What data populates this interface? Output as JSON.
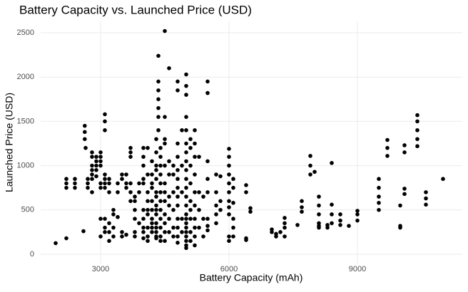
{
  "chart_data": {
    "type": "scatter",
    "title": "Battery Capacity vs. Launched Price (USD)",
    "x_label": "Battery Capacity (mAh)",
    "y_label": "Launched Price (USD)",
    "color": "#000000",
    "grid": true,
    "xlim": [
      1600,
      11450
    ],
    "ylim": [
      -105,
      2629
    ],
    "xticks": [
      3000,
      6000,
      9000
    ],
    "yticks": [
      0,
      500,
      1000,
      1500,
      2000,
      2500
    ],
    "x": [
      1950,
      2200,
      2200,
      2200,
      2200,
      2400,
      2400,
      2400,
      2600,
      2630,
      2630,
      2630,
      2650,
      2700,
      2700,
      2700,
      2800,
      2800,
      2800,
      2800,
      2800,
      2800,
      2800,
      2900,
      2900,
      2900,
      2900,
      2900,
      3000,
      3000,
      3000,
      3000,
      3000,
      3000,
      3000,
      3000,
      3100,
      3100,
      3100,
      3100,
      3100,
      3100,
      3100,
      3100,
      3100,
      3100,
      3200,
      3200,
      3200,
      3200,
      3200,
      3200,
      3300,
      3300,
      3300,
      3300,
      3400,
      3400,
      3400,
      3500,
      3500,
      3500,
      3500,
      3600,
      3600,
      3600,
      3600,
      3700,
      3700,
      3700,
      3700,
      3700,
      3700,
      3800,
      3800,
      3800,
      3800,
      3800,
      3800,
      3900,
      3900,
      3900,
      4000,
      4000,
      4000,
      4000,
      4000,
      4000,
      4000,
      4000,
      4000,
      4000,
      4100,
      4100,
      4100,
      4100,
      4100,
      4100,
      4100,
      4100,
      4100,
      4200,
      4200,
      4200,
      4200,
      4200,
      4200,
      4200,
      4200,
      4200,
      4200,
      4300,
      4300,
      4300,
      4300,
      4300,
      4300,
      4300,
      4300,
      4300,
      4300,
      4300,
      4300,
      4300,
      4300,
      4300,
      4350,
      4350,
      4350,
      4350,
      4350,
      4350,
      4350,
      4400,
      4400,
      4400,
      4400,
      4400,
      4400,
      4400,
      4400,
      4400,
      4400,
      4400,
      4400,
      4500,
      4500,
      4500,
      4500,
      4500,
      4500,
      4500,
      4500,
      4500,
      4500,
      4500,
      4500,
      4600,
      4600,
      4600,
      4600,
      4600,
      4600,
      4600,
      4700,
      4700,
      4700,
      4700,
      4700,
      4700,
      4800,
      4800,
      4800,
      4800,
      4800,
      4800,
      4800,
      4800,
      4800,
      4800,
      4800,
      4800,
      4800,
      4900,
      4900,
      4900,
      4900,
      4900,
      5000,
      5000,
      5000,
      5000,
      5000,
      5000,
      5000,
      5000,
      5000,
      5000,
      5000,
      5000,
      5000,
      5000,
      5000,
      5000,
      5000,
      5000,
      5000,
      5000,
      5000,
      5000,
      5100,
      5100,
      5100,
      5100,
      5100,
      5100,
      5100,
      5100,
      5100,
      5200,
      5200,
      5200,
      5200,
      5200,
      5200,
      5200,
      5200,
      5200,
      5200,
      5300,
      5300,
      5300,
      5300,
      5400,
      5400,
      5400,
      5500,
      5500,
      5500,
      5500,
      5500,
      5500,
      5500,
      5500,
      5700,
      5700,
      5700,
      5700,
      5700,
      5800,
      5800,
      5800,
      6000,
      6000,
      6000,
      6000,
      6000,
      6000,
      6000,
      6000,
      6000,
      6000,
      6000,
      6100,
      6100,
      6100,
      6100,
      6100,
      6100,
      6400,
      6400,
      6400,
      6400,
      6500,
      6500,
      7000,
      7000,
      7100,
      7100,
      7200,
      7300,
      7300,
      7300,
      7300,
      7600,
      7700,
      7700,
      7700,
      7900,
      7900,
      7900,
      8000,
      8100,
      8100,
      8100,
      8100,
      8100,
      8100,
      8300,
      8300,
      8400,
      8400,
      8400,
      8400,
      8600,
      8600,
      8600,
      8800,
      9000,
      9000,
      9000,
      9500,
      9500,
      9500,
      9500,
      9500,
      9700,
      9700,
      9700,
      10000,
      10000,
      10000,
      10100,
      10100,
      10100,
      10100,
      10400,
      10400,
      10400,
      10400,
      10400,
      10600,
      10600,
      10600,
      11000
    ],
    "values": [
      125,
      180,
      750,
      800,
      850,
      750,
      800,
      850,
      260,
      1450,
      1380,
      1300,
      1200,
      850,
      800,
      750,
      1150,
      1100,
      1000,
      950,
      900,
      700,
      850,
      1100,
      1050,
      1000,
      950,
      880,
      400,
      200,
      1150,
      1100,
      1050,
      1000,
      800,
      750,
      1580,
      1500,
      1400,
      900,
      850,
      800,
      750,
      400,
      300,
      250,
      850,
      800,
      700,
      350,
      250,
      150,
      500,
      450,
      300,
      200,
      700,
      800,
      420,
      900,
      850,
      250,
      200,
      900,
      800,
      750,
      220,
      1200,
      1150,
      1100,
      700,
      600,
      800,
      650,
      600,
      500,
      400,
      250,
      200,
      800,
      700,
      350,
      1200,
      1100,
      1000,
      850,
      800,
      500,
      400,
      300,
      250,
      180,
      1200,
      900,
      700,
      600,
      500,
      450,
      300,
      200,
      150,
      1050,
      900,
      800,
      750,
      600,
      500,
      400,
      350,
      300,
      250,
      1300,
      1150,
      1000,
      950,
      850,
      700,
      650,
      550,
      500,
      450,
      350,
      300,
      250,
      200,
      180,
      2240,
      1950,
      1850,
      1750,
      1650,
      1550,
      1400,
      1200,
      1100,
      1000,
      900,
      800,
      700,
      600,
      500,
      400,
      300,
      200,
      150,
      2520,
      1550,
      1300,
      1250,
      1000,
      800,
      700,
      600,
      450,
      350,
      250,
      150,
      2100,
      1050,
      900,
      650,
      550,
      400,
      250,
      1000,
      900,
      700,
      500,
      300,
      200,
      1950,
      1850,
      1250,
      1100,
      950,
      850,
      750,
      650,
      550,
      400,
      300,
      200,
      130,
      1400,
      1000,
      700,
      400,
      250,
      2030,
      1900,
      1800,
      1550,
      1400,
      1250,
      1150,
      1050,
      950,
      850,
      750,
      650,
      550,
      450,
      400,
      350,
      300,
      250,
      200,
      150,
      100,
      70,
      1300,
      1200,
      1000,
      800,
      600,
      500,
      400,
      250,
      150,
      1400,
      1250,
      1100,
      900,
      700,
      550,
      400,
      300,
      200,
      100,
      1100,
      700,
      500,
      300,
      650,
      400,
      200,
      1950,
      1820,
      1050,
      850,
      700,
      400,
      320,
      270,
      900,
      700,
      550,
      450,
      350,
      880,
      600,
      500,
      1190,
      1100,
      1000,
      900,
      800,
      700,
      600,
      530,
      450,
      200,
      150,
      850,
      750,
      580,
      400,
      300,
      200,
      780,
      700,
      180,
      160,
      520,
      480,
      280,
      250,
      230,
      200,
      250,
      300,
      350,
      410,
      200,
      330,
      600,
      530,
      480,
      1110,
      1000,
      900,
      930,
      650,
      550,
      450,
      350,
      320,
      300,
      330,
      300,
      560,
      450,
      1030,
      350,
      450,
      380,
      330,
      320,
      490,
      450,
      380,
      850,
      750,
      650,
      580,
      500,
      1290,
      1200,
      1110,
      550,
      320,
      300,
      1230,
      1150,
      740,
      680,
      1570,
      1500,
      1400,
      1300,
      1220,
      700,
      630,
      560,
      850
    ]
  }
}
